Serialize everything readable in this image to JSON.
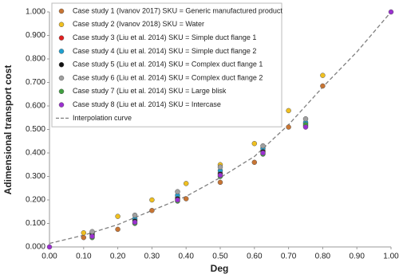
{
  "chart_data": {
    "type": "scatter",
    "xlabel": "Deg",
    "ylabel": "Adimensional transport cost",
    "xlim": [
      0,
      1
    ],
    "ylim": [
      0,
      1
    ],
    "xticks": [
      {
        "value": 0,
        "label": "0.00"
      },
      {
        "value": 0.1,
        "label": "0.10"
      },
      {
        "value": 0.2,
        "label": "0.20"
      },
      {
        "value": 0.3,
        "label": "0.30"
      },
      {
        "value": 0.4,
        "label": "0.40"
      },
      {
        "value": 0.5,
        "label": "0.50"
      },
      {
        "value": 0.6,
        "label": "0.60"
      },
      {
        "value": 0.7,
        "label": "0.70"
      },
      {
        "value": 0.8,
        "label": "0.80"
      },
      {
        "value": 0.9,
        "label": "0.90"
      },
      {
        "value": 1,
        "label": "1.00"
      }
    ],
    "yticks": [
      {
        "value": 0,
        "label": "0.000"
      },
      {
        "value": 0.1,
        "label": "0.100"
      },
      {
        "value": 0.2,
        "label": "0.200"
      },
      {
        "value": 0.3,
        "label": "0.300"
      },
      {
        "value": 0.4,
        "label": "0.400"
      },
      {
        "value": 0.5,
        "label": "0.500"
      },
      {
        "value": 0.6,
        "label": "0.600"
      },
      {
        "value": 0.7,
        "label": "0.700"
      },
      {
        "value": 0.8,
        "label": "0.800"
      },
      {
        "value": 0.9,
        "label": "0.900"
      },
      {
        "value": 1,
        "label": "1.000"
      }
    ],
    "legend": "upper-left",
    "series": [
      {
        "name": "Case study 1 (Ivanov 2017) SKU = Generic manufactured product",
        "color": "#c87533",
        "x": [
          0.1,
          0.2,
          0.3,
          0.4,
          0.5,
          0.6,
          0.7,
          0.8
        ],
        "values": [
          0.04,
          0.075,
          0.155,
          0.205,
          0.275,
          0.36,
          0.51,
          0.685
        ]
      },
      {
        "name": "Case study 2 (Ivanov 2018) SKU = Water",
        "color": "#f0c020",
        "x": [
          0.1,
          0.2,
          0.3,
          0.4,
          0.5,
          0.6,
          0.7,
          0.8
        ],
        "values": [
          0.06,
          0.13,
          0.2,
          0.27,
          0.35,
          0.44,
          0.58,
          0.73
        ]
      },
      {
        "name": "Case study 3 (Liu et al. 2014) SKU = Simple duct flange 1",
        "color": "#e02020",
        "x": [
          0.125,
          0.25,
          0.375,
          0.5,
          0.625,
          0.75
        ],
        "values": [
          0.055,
          0.115,
          0.21,
          0.315,
          0.41,
          0.525
        ]
      },
      {
        "name": "Case study 4 (Liu et al. 2014) SKU = Simple duct flange 2",
        "color": "#20a0d0",
        "x": [
          0.125,
          0.25,
          0.375,
          0.5,
          0.625,
          0.75
        ],
        "values": [
          0.06,
          0.12,
          0.22,
          0.325,
          0.42,
          0.53
        ]
      },
      {
        "name": "Case study 5 (Liu et al. 2014) SKU = Complex duct flange 1",
        "color": "#111111",
        "x": [
          0.125,
          0.25,
          0.375,
          0.5,
          0.625,
          0.75
        ],
        "values": [
          0.05,
          0.11,
          0.205,
          0.31,
          0.405,
          0.515
        ]
      },
      {
        "name": "Case study 6 (Liu et al. 2014) SKU = Complex duct flange 2",
        "color": "#a0a0a0",
        "x": [
          0.125,
          0.25,
          0.375,
          0.5,
          0.625,
          0.75
        ],
        "values": [
          0.065,
          0.135,
          0.235,
          0.34,
          0.43,
          0.545
        ]
      },
      {
        "name": "Case study 7 (Liu et al. 2014) SKU = Large blisk",
        "color": "#40a040",
        "x": [
          0.125,
          0.25,
          0.375,
          0.5,
          0.625,
          0.75
        ],
        "values": [
          0.04,
          0.1,
          0.195,
          0.3,
          0.395,
          0.52
        ]
      },
      {
        "name": "Case study 8 (Liu et al. 2014) SKU = Intercase",
        "color": "#9b30d0",
        "x": [
          0,
          0.125,
          0.25,
          0.375,
          0.5,
          0.625,
          0.75,
          1
        ],
        "values": [
          0,
          0.045,
          0.105,
          0.2,
          0.305,
          0.4,
          0.51,
          1
        ]
      },
      {
        "name": "Interpolation curve",
        "color": "#808080",
        "line": "dashed",
        "x": [
          0,
          0.1,
          0.2,
          0.3,
          0.4,
          0.5,
          0.6,
          0.7,
          0.8,
          0.9,
          1
        ],
        "values": [
          0.015,
          0.05,
          0.095,
          0.155,
          0.215,
          0.295,
          0.385,
          0.52,
          0.68,
          0.83,
          1
        ]
      }
    ]
  }
}
